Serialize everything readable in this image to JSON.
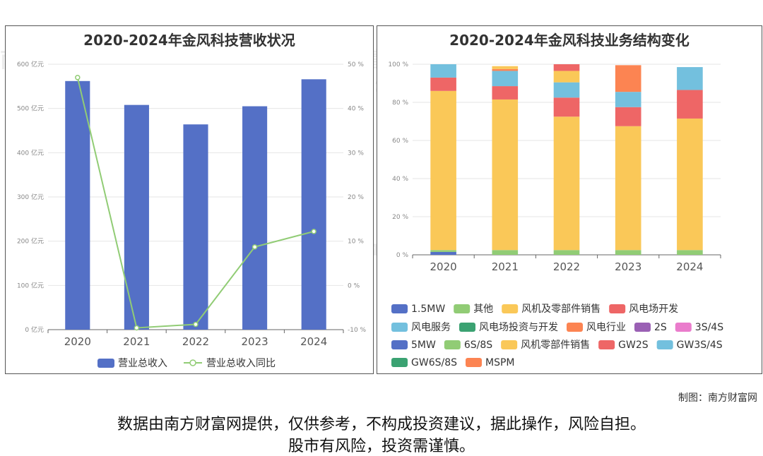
{
  "left": {
    "title": "2020-2024年金风科技营收状况",
    "chart_data": {
      "type": "bar",
      "categories": [
        "2020",
        "2021",
        "2022",
        "2023",
        "2024"
      ],
      "series": [
        {
          "name": "营业总收入",
          "type": "bar",
          "axis": "left",
          "values": [
            562,
            508,
            464,
            505,
            566
          ],
          "color": "#5470c6"
        },
        {
          "name": "营业总收入同比",
          "type": "line",
          "axis": "right",
          "values": [
            47,
            -9.6,
            -8.8,
            8.7,
            12.2
          ],
          "color": "#91cc75"
        }
      ],
      "y_left": {
        "min": 0,
        "max": 600,
        "ticks": [
          "0 亿元",
          "100 亿元",
          "200 亿元",
          "300 亿元",
          "400 亿元",
          "500 亿元",
          "600 亿元"
        ]
      },
      "y_right": {
        "min": -10,
        "max": 50,
        "ticks": [
          "-10 %",
          "0 %",
          "10 %",
          "20 %",
          "30 %",
          "40 %",
          "50 %"
        ]
      },
      "grid": true,
      "legend": "bottom"
    }
  },
  "right": {
    "title": "2020-2024年金风科技业务结构变化",
    "chart_data": {
      "type": "bar",
      "stacked": true,
      "categories": [
        "2020",
        "2021",
        "2022",
        "2023",
        "2024"
      ],
      "y_ticks": [
        "0 %",
        "20 %",
        "40 %",
        "60 %",
        "80 %",
        "100 %"
      ],
      "ylim": [
        0,
        100
      ],
      "series": [
        {
          "name": "1.5MW",
          "color": "#5470c6",
          "values": [
            1.5,
            0,
            0,
            0,
            0
          ]
        },
        {
          "name": "其他",
          "color": "#91cc75",
          "values": [
            1,
            2.5,
            2.5,
            2.5,
            2.5
          ]
        },
        {
          "name": "风机及零部件销售",
          "color": "#fac858",
          "values": [
            83.5,
            79,
            70,
            65,
            69
          ]
        },
        {
          "name": "风电场开发",
          "color": "#ee6666",
          "values": [
            7,
            7,
            10,
            10,
            15
          ]
        },
        {
          "name": "风电服务",
          "color": "#73c0de",
          "values": [
            7,
            8,
            8,
            8,
            12
          ]
        },
        {
          "name": "风电场投资与开发",
          "color": "#3ba272",
          "values": [
            0,
            0,
            0,
            0,
            0
          ]
        },
        {
          "name": "风电行业",
          "color": "#fc8452",
          "values": [
            0,
            1,
            0,
            14,
            0
          ]
        },
        {
          "name": "2S",
          "color": "#9a60b4",
          "values": [
            0,
            0,
            0,
            0,
            0
          ]
        },
        {
          "name": "3S/4S",
          "color": "#ea7ccc",
          "values": [
            0,
            0,
            0,
            0,
            0
          ]
        },
        {
          "name": "5MW",
          "color": "#5470c6",
          "values": [
            0,
            0,
            0,
            0,
            0
          ]
        },
        {
          "name": "6S/8S",
          "color": "#91cc75",
          "values": [
            0,
            0,
            0,
            0,
            0
          ]
        },
        {
          "name": "风机零部件销售",
          "color": "#fac858",
          "values": [
            0,
            1.5,
            6,
            0,
            0
          ]
        },
        {
          "name": "GW2S",
          "color": "#ee6666",
          "values": [
            0,
            0,
            3.5,
            0,
            0
          ]
        },
        {
          "name": "GW3S/4S",
          "color": "#73c0de",
          "values": [
            0,
            0,
            0,
            0,
            0
          ]
        },
        {
          "name": "GW6S/8S",
          "color": "#3ba272",
          "values": [
            0,
            0,
            0,
            0,
            0
          ]
        },
        {
          "name": "MSPM",
          "color": "#fc8452",
          "values": [
            0,
            0,
            0,
            0,
            0
          ]
        }
      ],
      "legend": "bottom"
    }
  },
  "credit": "制图：南方财富网",
  "disclaimer_line1": "数据由南方财富网提供，仅供参考，不构成投资建议，据此操作，风险自担。",
  "disclaimer_line2": "股市有风险，投资需谨慎。",
  "watermark": "南方财富网",
  "watermark_url": "southmoney.com"
}
